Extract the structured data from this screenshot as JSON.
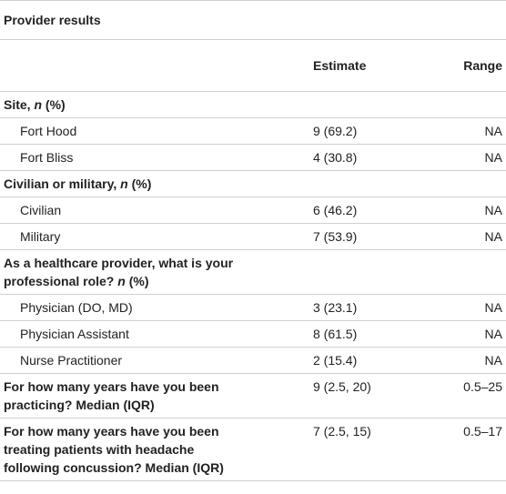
{
  "title": "Provider results",
  "header": {
    "estimate": "Estimate",
    "range": "Range"
  },
  "rows": [
    {
      "kind": "section",
      "label": [
        {
          "text": "Site, "
        },
        {
          "text": "n",
          "italic": true
        },
        {
          "text": " (%)"
        }
      ]
    },
    {
      "kind": "item",
      "label": [
        {
          "text": "Fort Hood"
        }
      ],
      "estimate": "9 (69.2)",
      "range": "NA"
    },
    {
      "kind": "item",
      "label": [
        {
          "text": "Fort Bliss"
        }
      ],
      "estimate": "4 (30.8)",
      "range": "NA"
    },
    {
      "kind": "section",
      "label": [
        {
          "text": "Civilian or military, "
        },
        {
          "text": "n",
          "italic": true
        },
        {
          "text": " (%)"
        }
      ]
    },
    {
      "kind": "item",
      "label": [
        {
          "text": "Civilian"
        }
      ],
      "estimate": "6 (46.2)",
      "range": "NA"
    },
    {
      "kind": "item",
      "label": [
        {
          "text": "Military"
        }
      ],
      "estimate": "7 (53.9)",
      "range": "NA"
    },
    {
      "kind": "section",
      "label": [
        {
          "text": "As a healthcare provider, what is your professional role? "
        },
        {
          "text": "n",
          "italic": true
        },
        {
          "text": " (%)"
        }
      ]
    },
    {
      "kind": "item",
      "label": [
        {
          "text": "Physician (DO, MD)"
        }
      ],
      "estimate": "3 (23.1)",
      "range": "NA"
    },
    {
      "kind": "item",
      "label": [
        {
          "text": "Physician Assistant"
        }
      ],
      "estimate": "8 (61.5)",
      "range": "NA"
    },
    {
      "kind": "item",
      "label": [
        {
          "text": "Nurse Practitioner"
        }
      ],
      "estimate": "2 (15.4)",
      "range": "NA"
    },
    {
      "kind": "section",
      "label": [
        {
          "text": "For how many years have you been practicing? Median (IQR)"
        }
      ],
      "estimate": "9 (2.5, 20)",
      "range": "0.5–25"
    },
    {
      "kind": "section",
      "label": [
        {
          "text": "For how many years have you been treating patients with headache following concussion? Median (IQR)"
        }
      ],
      "estimate": "7 (2.5, 15)",
      "range": "0.5–17"
    }
  ]
}
